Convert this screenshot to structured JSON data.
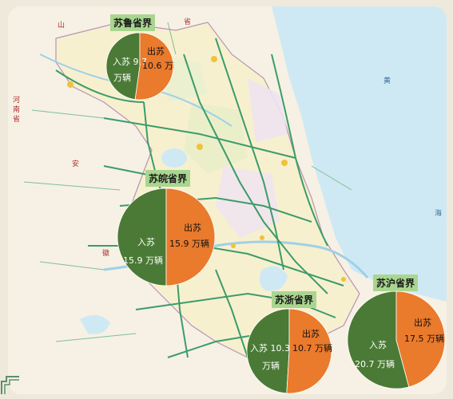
{
  "colors": {
    "inbound": "#4a7a35",
    "outbound": "#ea7a2c",
    "label_bg": "#a9d68f",
    "sea": "#cfe9f4",
    "land": "#f6f1e4",
    "province": "#f7f0cf",
    "road": "#3c9c6a"
  },
  "map_labels": {
    "shandong": "山",
    "province_top": "省",
    "henan_1": "河",
    "henan_2": "南",
    "henan_3": "省",
    "anhui_1": "安",
    "anhui_2": "徽",
    "sea_1": "黄",
    "sea_2": "海",
    "province_bottom": "省"
  },
  "borders": [
    {
      "name": "苏鲁省界",
      "inbound_label": "入苏",
      "inbound_value": "9.7",
      "inbound_unit": "万辆",
      "outbound_label": "出苏",
      "outbound_value": "10.6",
      "outbound_unit": "万辆",
      "inbound": 9.7,
      "outbound": 10.6
    },
    {
      "name": "苏皖省界",
      "inbound_label": "入苏",
      "inbound_value": "15.9",
      "inbound_unit": "万辆",
      "outbound_label": "出苏",
      "outbound_value": "15.9",
      "outbound_unit": "万辆",
      "inbound": 15.9,
      "outbound": 15.9
    },
    {
      "name": "苏浙省界",
      "inbound_label": "入苏",
      "inbound_value": "10.3",
      "inbound_unit": "万辆",
      "outbound_label": "出苏",
      "outbound_value": "10.7",
      "outbound_unit": "万辆",
      "inbound": 10.3,
      "outbound": 10.7
    },
    {
      "name": "苏沪省界",
      "inbound_label": "入苏",
      "inbound_value": "20.7",
      "inbound_unit": "万辆",
      "outbound_label": "出苏",
      "outbound_value": "17.5",
      "outbound_unit": "万辆",
      "inbound": 20.7,
      "outbound": 17.5
    }
  ]
}
